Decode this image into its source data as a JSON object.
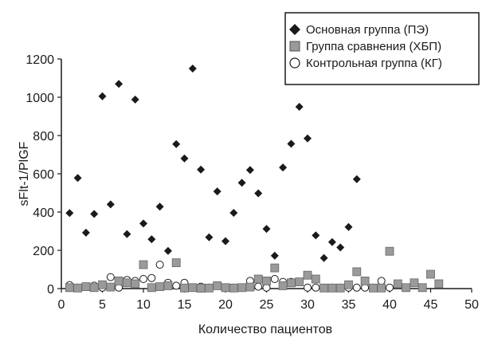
{
  "chart_data": {
    "type": "scatter",
    "xlabel": "Количество пациентов",
    "ylabel": "sFlt-1/PlGF",
    "xlim": [
      0,
      50
    ],
    "ylim": [
      0,
      1200
    ],
    "xticks": [
      0,
      5,
      10,
      15,
      20,
      25,
      30,
      35,
      40,
      45,
      50
    ],
    "yticks": [
      0,
      200,
      400,
      600,
      800,
      1000,
      1200
    ],
    "grid": false,
    "legend_position": "top-right",
    "series": [
      {
        "name": "Основная группа (ПЭ)",
        "marker": "diamond",
        "color": "#1a1a1a",
        "x": [
          1,
          2,
          3,
          4,
          5,
          6,
          7,
          8,
          9,
          10,
          11,
          12,
          13,
          14,
          15,
          16,
          17,
          18,
          19,
          20,
          21,
          22,
          23,
          24,
          25,
          26,
          27,
          28,
          29,
          30,
          31,
          32,
          33,
          34,
          35,
          36
        ],
        "y": [
          395,
          578,
          292,
          390,
          1005,
          440,
          1070,
          285,
          988,
          340,
          258,
          428,
          197,
          755,
          680,
          1150,
          622,
          268,
          508,
          248,
          396,
          553,
          620,
          498,
          312,
          172,
          633,
          757,
          950,
          785,
          278,
          160,
          243,
          215,
          322,
          572
        ]
      },
      {
        "name": "Группа сравнения (ХБП)",
        "marker": "square",
        "color": "#9a9a9a",
        "x": [
          1,
          2,
          3,
          4,
          5,
          6,
          7,
          8,
          9,
          10,
          11,
          12,
          13,
          14,
          15,
          16,
          17,
          18,
          19,
          20,
          21,
          22,
          23,
          24,
          25,
          26,
          27,
          28,
          29,
          30,
          31,
          32,
          33,
          34,
          35,
          36,
          37,
          38,
          39,
          40,
          41,
          42,
          43,
          44,
          45,
          46
        ],
        "y": [
          5,
          3,
          10,
          5,
          20,
          8,
          40,
          30,
          25,
          125,
          5,
          10,
          15,
          135,
          3,
          5,
          2,
          3,
          15,
          5,
          3,
          5,
          8,
          50,
          40,
          108,
          15,
          30,
          35,
          70,
          50,
          3,
          3,
          3,
          20,
          88,
          40,
          3,
          3,
          195,
          25,
          5,
          30,
          5,
          75,
          25
        ]
      },
      {
        "name": "Контрольная группа (КГ)",
        "marker": "circle",
        "color": "#ffffff",
        "x": [
          1,
          2,
          3,
          4,
          5,
          6,
          7,
          8,
          9,
          10,
          11,
          12,
          13,
          14,
          15,
          16,
          17,
          18,
          19,
          20,
          21,
          22,
          23,
          24,
          25,
          26,
          27,
          28,
          29,
          30,
          31,
          32,
          33,
          34,
          35,
          36,
          37,
          38,
          39,
          40
        ],
        "y": [
          18,
          5,
          10,
          15,
          5,
          60,
          5,
          45,
          40,
          50,
          55,
          125,
          30,
          15,
          30,
          5,
          10,
          5,
          15,
          5,
          5,
          5,
          40,
          10,
          5,
          50,
          35,
          35,
          35,
          5,
          5,
          5,
          5,
          5,
          5,
          5,
          5,
          5,
          40,
          5
        ]
      }
    ]
  }
}
